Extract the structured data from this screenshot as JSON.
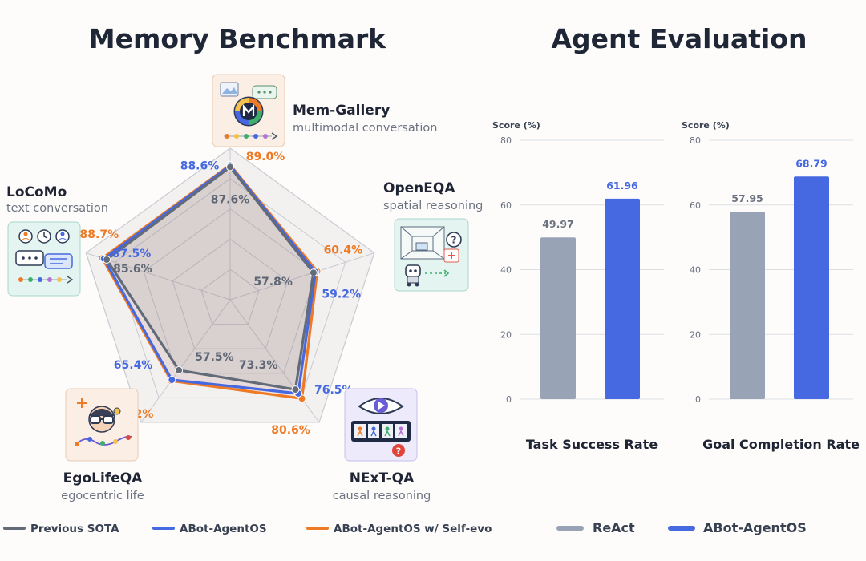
{
  "colors": {
    "previous_sota": "#636b78",
    "abot": "#4668e0",
    "selfevo": "#ee7a26",
    "react": "#98a3b5",
    "abot_bar": "#4668e0",
    "grid": "#c7cbd3",
    "bar_grid": "#dcdfe4"
  },
  "chart_data": [
    {
      "type": "radar",
      "title": "Memory Benchmark",
      "rmax": 100,
      "axes": [
        {
          "name": "Mem-Gallery",
          "sub": "multimodal conversation",
          "icon": "gallery-icon"
        },
        {
          "name": "OpenEQA",
          "sub": "spatial reasoning",
          "icon": "robot-room-icon"
        },
        {
          "name": "NExT-QA",
          "sub": "causal reasoning",
          "icon": "video-eye-icon"
        },
        {
          "name": "EgoLifeQA",
          "sub": "egocentric life",
          "icon": "glasses-icon"
        },
        {
          "name": "LoCoMo",
          "sub": "text conversation",
          "icon": "chat-bubbles-icon"
        }
      ],
      "series": [
        {
          "name": "Previous SOTA",
          "values": [
            87.6,
            57.8,
            73.3,
            57.5,
            85.6
          ],
          "labels": [
            "87.6%",
            "57.8%",
            "73.3%",
            "57.5%",
            "85.6%"
          ]
        },
        {
          "name": "ABot-AgentOS",
          "values": [
            88.6,
            59.2,
            76.5,
            65.4,
            87.5
          ],
          "labels": [
            "88.6%",
            "59.2%",
            "76.5%",
            "65.4%",
            "87.5%"
          ]
        },
        {
          "name": "ABot-AgentOS w/ Self-evo",
          "values": [
            89.0,
            60.4,
            80.6,
            66.2,
            88.7
          ],
          "labels": [
            "89.0%",
            "60.4%",
            "80.6%",
            "66.2%",
            "88.7%"
          ]
        }
      ]
    },
    {
      "type": "bar",
      "title": "Agent Evaluation",
      "ylabel": "Score (%)",
      "ylim": [
        0,
        80
      ],
      "yticks": [
        0,
        20,
        40,
        60,
        80
      ],
      "categories": [
        "Task Success Rate",
        "Goal Completion Rate"
      ],
      "series": [
        {
          "name": "ReAct",
          "values": [
            49.97,
            57.95
          ],
          "labels": [
            "49.97",
            "57.95"
          ]
        },
        {
          "name": "ABot-AgentOS",
          "values": [
            61.96,
            68.79
          ],
          "labels": [
            "61.96",
            "68.79"
          ]
        }
      ]
    }
  ]
}
